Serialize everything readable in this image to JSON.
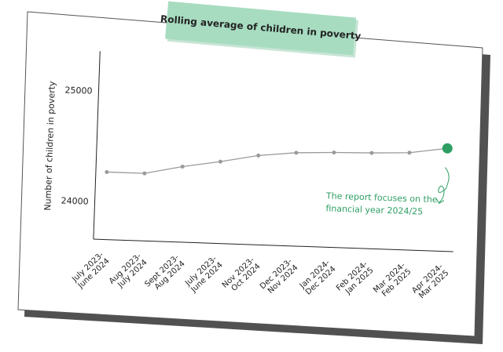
{
  "chart_data": {
    "type": "line",
    "title": "Rolling average of children in poverty",
    "y_label": "Number of children in poverty",
    "categories": [
      "July 2023-\nJune 2024",
      "Aug 2023-\nJuly 2024",
      "Sept 2023-\nAug 2024",
      "July 2023-\nJune 2024",
      "Nov 2023-\nOct 2024",
      "Dec 2023-\nNov 2024",
      "Jan 2024-\nDec 2024",
      "Feb 2024-\nJan 2025",
      "Mar 2024-\nFeb 2025",
      "Apr 2024-\nMar 2025"
    ],
    "series": [
      {
        "name": "Number of children in poverty",
        "color": "#9a9a9a",
        "values": [
          24270,
          24270,
          24343,
          24400,
          24467,
          24504,
          24518,
          24526,
          24540,
          24591
        ]
      }
    ],
    "highlight_color": "#2e9e63",
    "annotation": "The report focuses on the\nfinancial year 2024/25",
    "ylim": [
      23660,
      25360
    ],
    "yticks": [
      24000,
      25000
    ],
    "grid": false
  }
}
